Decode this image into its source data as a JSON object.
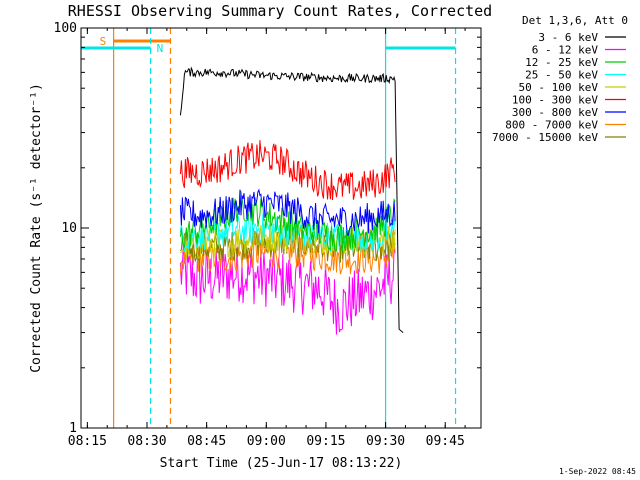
{
  "chart_data": {
    "type": "line",
    "title": "RHESSI Observing Summary Count Rates, Corrected",
    "xlabel": "Start Time (25-Jun-17 08:13:22)",
    "ylabel": "Corrected Count Rate (s⁻¹ detector⁻¹)",
    "y_scale": "log",
    "ylim": [
      1,
      100
    ],
    "xlim_minutes": [
      0,
      100.6
    ],
    "x_tick_labels": [
      "08:15",
      "08:30",
      "08:45",
      "09:00",
      "09:15",
      "09:30",
      "09:45"
    ],
    "x_tick_minutes": [
      1.6,
      16.6,
      31.6,
      46.6,
      61.6,
      76.6,
      91.6
    ],
    "y_tick_labels": [
      "1",
      "10",
      "100"
    ],
    "y_tick_values": [
      1,
      10,
      100
    ],
    "legend_title": "Det 1,3,6, Att 0",
    "series": [
      {
        "name": "3 - 6 keV",
        "color": "#000000",
        "x": [
          25,
          26,
          35,
          45,
          55,
          65,
          75,
          79,
          80
        ],
        "values": [
          35,
          60,
          60,
          58,
          57,
          56,
          56,
          56,
          3
        ]
      },
      {
        "name": "6 - 12 keV",
        "color": "#ff00ff",
        "x": [
          25,
          30,
          40,
          50,
          60,
          65,
          70,
          75,
          79
        ],
        "values": [
          6,
          5.5,
          6,
          5.5,
          5,
          4,
          4.5,
          5,
          6
        ]
      },
      {
        "name": "12 - 25 keV",
        "color": "#00cc00",
        "x": [
          25,
          30,
          35,
          40,
          45,
          50,
          55,
          60,
          65,
          70,
          75,
          79
        ],
        "values": [
          9,
          10,
          11,
          13,
          12,
          11,
          10,
          9.5,
          9,
          9.5,
          10,
          12
        ]
      },
      {
        "name": "25 - 50 keV",
        "color": "#00ffff",
        "x": [
          25,
          35,
          45,
          55,
          65,
          75,
          79
        ],
        "values": [
          9,
          9.5,
          10,
          9.5,
          9,
          9,
          10
        ]
      },
      {
        "name": "50 - 100 keV",
        "color": "#cccc00",
        "x": [
          25,
          35,
          45,
          55,
          65,
          75,
          79
        ],
        "values": [
          8,
          8.5,
          9,
          9,
          8.5,
          8.5,
          9
        ]
      },
      {
        "name": "100 - 300 keV",
        "color": "#ff0000",
        "x": [
          25,
          30,
          35,
          40,
          45,
          50,
          55,
          60,
          65,
          70,
          75,
          79
        ],
        "values": [
          19,
          19,
          20,
          22,
          23,
          22,
          19,
          17,
          16,
          16,
          17,
          20
        ]
      },
      {
        "name": "300 - 800 keV",
        "color": "#0000ff",
        "x": [
          25,
          30,
          35,
          40,
          45,
          50,
          55,
          60,
          65,
          70,
          75,
          79
        ],
        "values": [
          12,
          11.5,
          12,
          13,
          13.5,
          13,
          12,
          11,
          11,
          11,
          11.5,
          12
        ]
      },
      {
        "name": "800 - 7000 keV",
        "color": "#ff8000",
        "x": [
          25,
          35,
          45,
          55,
          65,
          75,
          79
        ],
        "values": [
          7,
          7,
          7.5,
          7.5,
          7,
          7,
          7.5
        ]
      },
      {
        "name": "7000 - 15000 keV",
        "color": "#808000",
        "x": [
          25,
          35,
          45,
          55,
          65,
          75,
          79
        ],
        "values": [
          8,
          8,
          8.5,
          8.5,
          8,
          8,
          8.5
        ]
      }
    ],
    "annotations": [
      {
        "label": "S",
        "color": "#ff8000",
        "x_start_minutes": 8.2,
        "x_end_minutes": 22.5
      },
      {
        "label": "N",
        "color": "#00e5e5",
        "x_start_minutes": 0,
        "x_end_minutes": 17.5
      },
      {
        "label": "",
        "color": "#00e5e5",
        "x_start_minutes": 76.6,
        "x_end_minutes": 94.2
      }
    ],
    "timestamp": "1-Sep-2022 08:45"
  }
}
